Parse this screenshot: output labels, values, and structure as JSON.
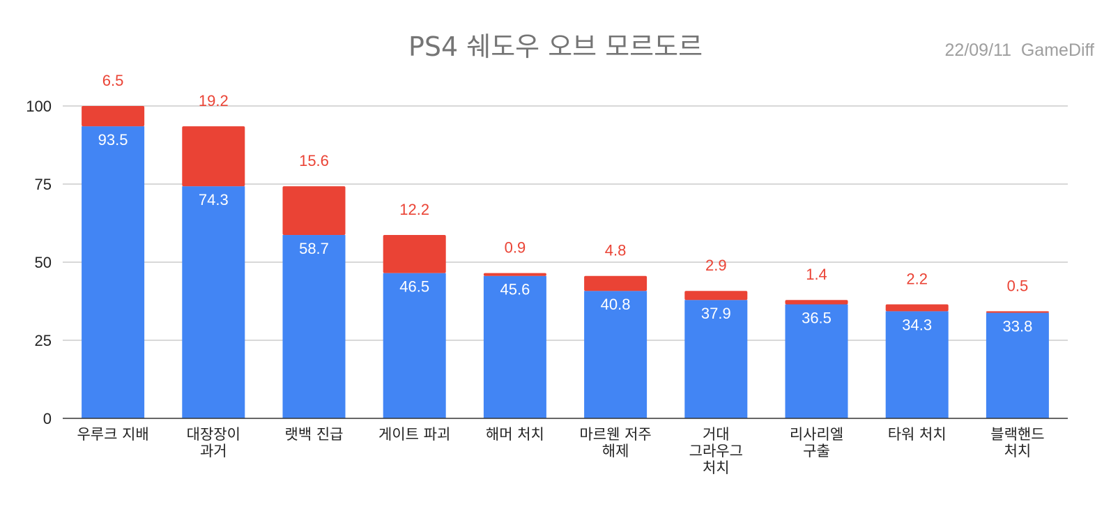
{
  "chart_data": {
    "type": "bar",
    "stacked": true,
    "title": "PS4 쉐도우 오브 모르도르",
    "subtitle": "22/09/11  GameDiff",
    "categories": [
      [
        "우루크 지배"
      ],
      [
        "대장장이",
        "과거"
      ],
      [
        "랫백 진급"
      ],
      [
        "게이트 파괴"
      ],
      [
        "해머 처치"
      ],
      [
        "마르웬 저주",
        "해제"
      ],
      [
        "거대",
        "그라우그",
        "처치"
      ],
      [
        "리사리엘",
        "구출"
      ],
      [
        "타워 처치"
      ],
      [
        "블랙핸드",
        "처치"
      ]
    ],
    "series": [
      {
        "values": [
          93.5,
          74.3,
          58.7,
          46.5,
          45.6,
          40.8,
          37.9,
          36.5,
          34.3,
          33.8
        ],
        "color": "#4285f4"
      },
      {
        "values": [
          6.5,
          19.2,
          15.6,
          12.2,
          0.9,
          4.8,
          2.9,
          1.4,
          2.2,
          0.5
        ],
        "color": "#ea4335"
      }
    ],
    "yticks": [
      0,
      25,
      50,
      75,
      100
    ],
    "ylim": [
      0,
      100
    ],
    "grid": true,
    "legend": "none"
  }
}
